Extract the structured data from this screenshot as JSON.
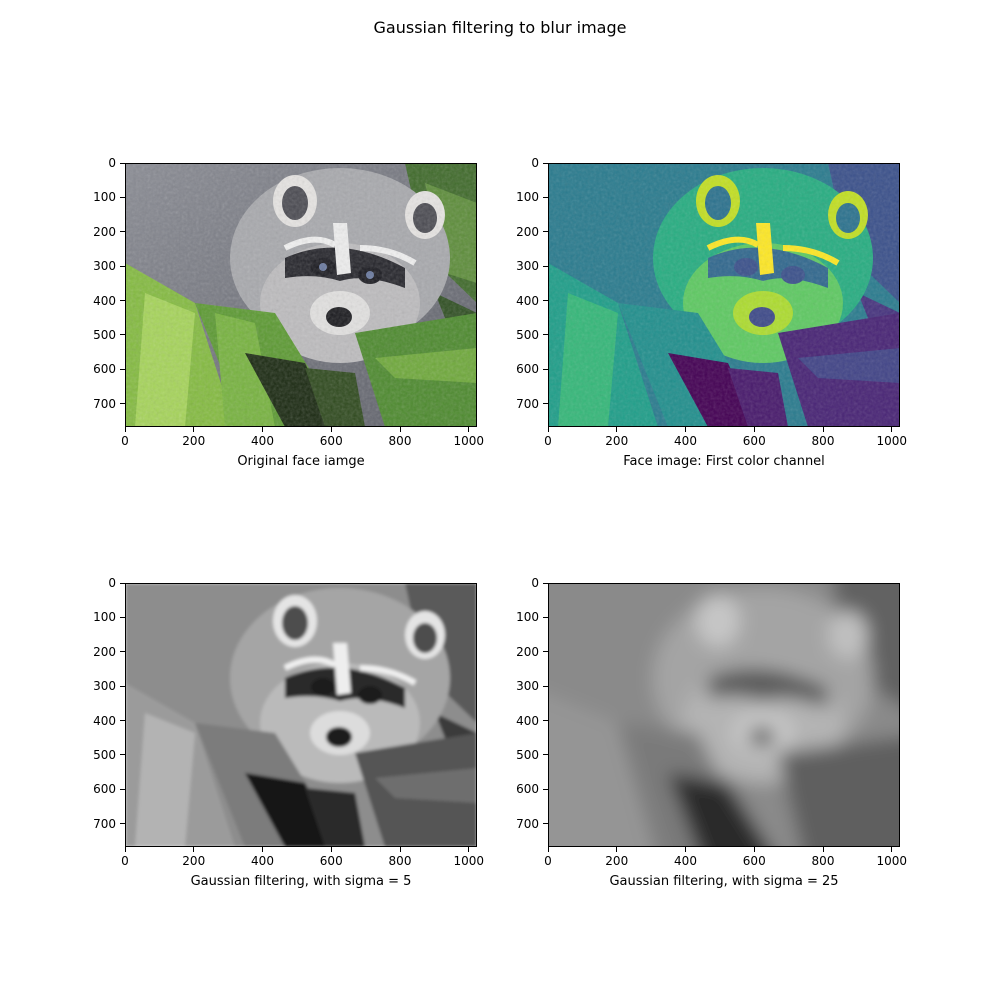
{
  "figure": {
    "title": "Gaussian filtering to blur image"
  },
  "axes": {
    "xticks": [
      "0",
      "200",
      "400",
      "600",
      "800",
      "1000"
    ],
    "yticks": [
      "0",
      "100",
      "200",
      "300",
      "400",
      "500",
      "600",
      "700"
    ],
    "x_range": [
      0,
      1024
    ],
    "y_range": [
      0,
      768
    ]
  },
  "panels": [
    {
      "xlabel": "Original face iamge",
      "colormap": "rgb"
    },
    {
      "xlabel": "Face image: First color channel",
      "colormap": "viridis"
    },
    {
      "xlabel": "Gaussian filtering, with sigma = 5",
      "colormap": "gray",
      "sigma": 5
    },
    {
      "xlabel": "Gaussian filtering, with sigma = 25",
      "colormap": "gray",
      "sigma": 25
    }
  ],
  "colors": {
    "viridis_dark": "#440154",
    "viridis_mid": "#21918c",
    "viridis_bright": "#fde725",
    "leaf_green": "#6aa030"
  }
}
